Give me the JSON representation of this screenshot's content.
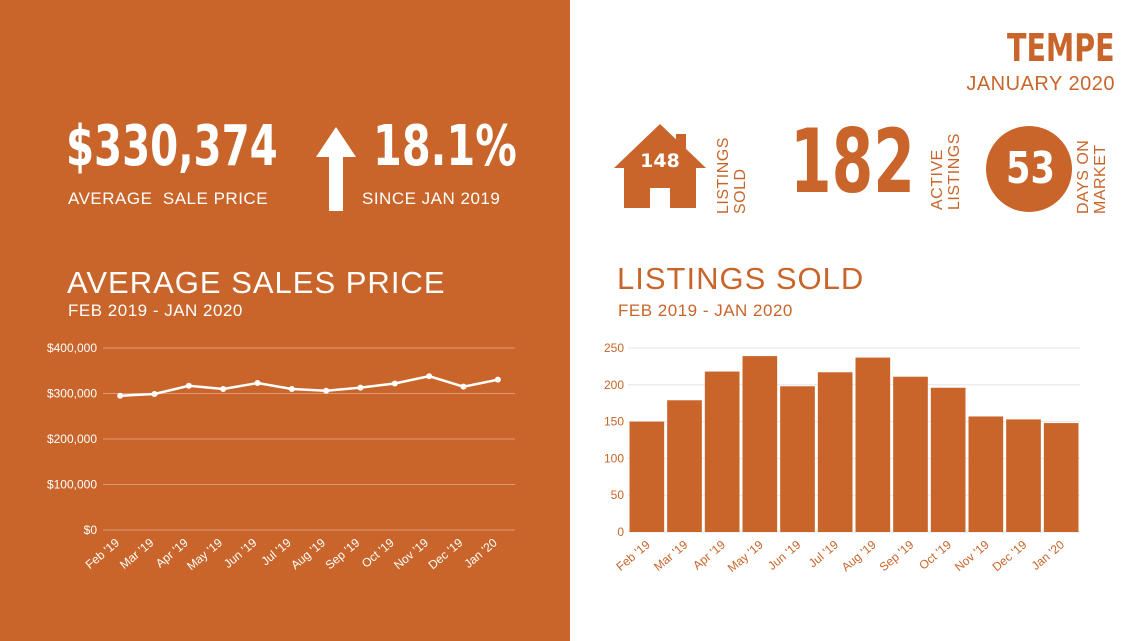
{
  "location": "TEMPE",
  "period": "JANUARY 2020",
  "stats": {
    "avg_sale_price": "$330,374",
    "avg_sale_price_label": "AVERAGE  SALE PRICE",
    "change_pct": "18.1%",
    "change_label": "SINCE JAN 2019",
    "listings_sold": "148",
    "listings_sold_label_1": "LISTINGS",
    "listings_sold_label_2": "SOLD",
    "active_listings": "182",
    "active_listings_label_1": "ACTIVE",
    "active_listings_label_2": "LISTINGS",
    "days_on_market": "53",
    "days_on_market_label_1": "DAYS ON",
    "days_on_market_label_2": "MARKET"
  },
  "colors": {
    "accent": "#c9652a",
    "white": "#ffffff"
  },
  "chart_data": [
    {
      "type": "line",
      "title": "AVERAGE SALES PRICE",
      "subtitle": "FEB 2019 - JAN 2020",
      "categories": [
        "Feb '19",
        "Mar '19",
        "Apr '19",
        "May '19",
        "Jun '19",
        "Jul '19",
        "Aug '19",
        "Sep '19",
        "Oct '19",
        "Nov '19",
        "Dec '19",
        "Jan '20"
      ],
      "values": [
        295000,
        299000,
        317000,
        310000,
        323000,
        310000,
        306000,
        313000,
        322000,
        338000,
        315000,
        330374
      ],
      "ylim": [
        0,
        400000
      ],
      "yticks": [
        0,
        100000,
        200000,
        300000,
        400000
      ],
      "ytick_labels": [
        "$0",
        "$100,000",
        "$200,000",
        "$300,000",
        "$400,000"
      ],
      "grid": true
    },
    {
      "type": "bar",
      "title": "LISTINGS SOLD",
      "subtitle": "FEB 2019 - JAN 2020",
      "categories": [
        "Feb '19",
        "Mar '19",
        "Apr '19",
        "May '19",
        "Jun '19",
        "Jul '19",
        "Aug '19",
        "Sep '19",
        "Oct '19",
        "Nov '19",
        "Dec '19",
        "Jan '20"
      ],
      "values": [
        150,
        179,
        218,
        239,
        198,
        217,
        237,
        211,
        196,
        157,
        153,
        148
      ],
      "ylim": [
        0,
        250
      ],
      "yticks": [
        0,
        50,
        100,
        150,
        200,
        250
      ],
      "ytick_labels": [
        "0",
        "50",
        "100",
        "150",
        "200",
        "250"
      ],
      "grid": true
    }
  ]
}
